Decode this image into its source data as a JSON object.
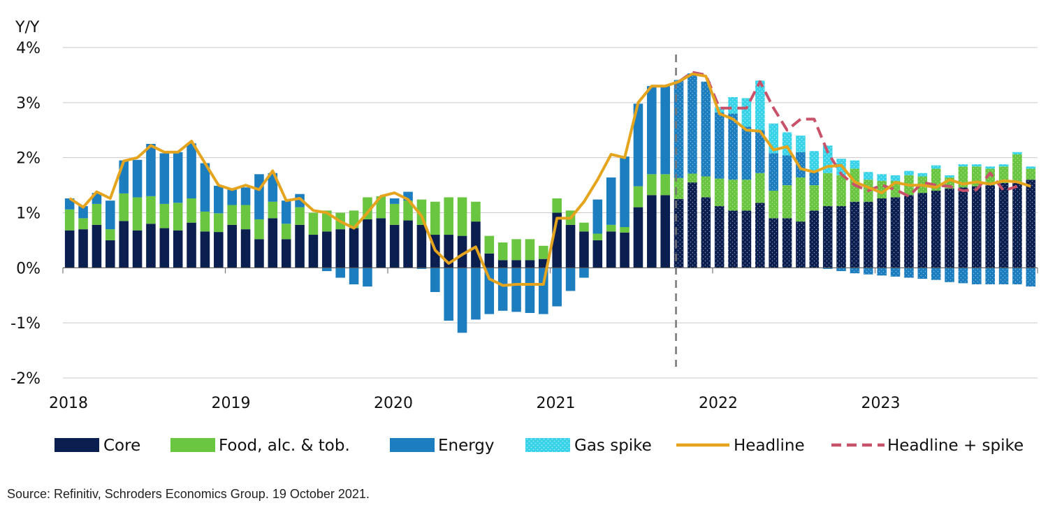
{
  "chart_data": {
    "type": "bar",
    "title": "",
    "ylabel": "Y/Y",
    "xlabel": "",
    "ylim": [
      -2,
      4
    ],
    "y_ticks": [
      "-2%",
      "-1%",
      "0%",
      "1%",
      "2%",
      "3%",
      "4%"
    ],
    "y_tick_values": [
      -2,
      -1,
      0,
      1,
      2,
      3,
      4
    ],
    "x_tick_labels": [
      "2018",
      "2019",
      "2020",
      "2021",
      "2022",
      "2023"
    ],
    "grid": true,
    "months_count": 72,
    "forecast_start_index": 45,
    "forecast_divider_label": "Oct 2021",
    "legend": [
      "Core",
      "Food, alc. & tob.",
      "Energy",
      "Gas spike",
      "Headline",
      "Headline + spike"
    ],
    "legend_position": "bottom",
    "colors": {
      "core": "#0b1e50",
      "food": "#6ac540",
      "energy": "#1c7dbf",
      "gas": "#38d3e8",
      "headline": "#e5a41e",
      "spike": "#c8526a",
      "grid": "#c9c9c9",
      "divider": "#777777"
    },
    "series": [
      {
        "name": "Core",
        "stack": "positive",
        "values": [
          0.68,
          0.7,
          0.78,
          0.5,
          0.85,
          0.68,
          0.8,
          0.72,
          0.68,
          0.82,
          0.66,
          0.65,
          0.78,
          0.7,
          0.52,
          0.9,
          0.52,
          0.78,
          0.6,
          0.66,
          0.7,
          0.72,
          0.88,
          0.9,
          0.78,
          0.86,
          0.78,
          0.6,
          0.6,
          0.58,
          0.84,
          0.26,
          0.14,
          0.14,
          0.14,
          0.16,
          1.0,
          0.78,
          0.66,
          0.5,
          0.66,
          0.64,
          1.1,
          1.32,
          1.32,
          1.25,
          1.55,
          1.28,
          1.12,
          1.04,
          1.04,
          1.18,
          0.9,
          0.9,
          0.84,
          1.04,
          1.12,
          1.12,
          1.2,
          1.2,
          1.26,
          1.28,
          1.32,
          1.36,
          1.4,
          1.44,
          1.46,
          1.48,
          1.5,
          1.54,
          1.56,
          1.6
        ]
      },
      {
        "name": "Food, alc. & tob.",
        "stack": "positive",
        "values": [
          0.38,
          0.2,
          0.38,
          0.2,
          0.5,
          0.6,
          0.5,
          0.44,
          0.5,
          0.44,
          0.36,
          0.34,
          0.36,
          0.44,
          0.36,
          0.3,
          0.28,
          0.32,
          0.4,
          0.38,
          0.3,
          0.32,
          0.4,
          0.4,
          0.38,
          0.36,
          0.46,
          0.6,
          0.68,
          0.7,
          0.36,
          0.32,
          0.32,
          0.38,
          0.38,
          0.24,
          0.26,
          0.26,
          0.16,
          0.12,
          0.12,
          0.1,
          0.38,
          0.38,
          0.38,
          0.38,
          0.16,
          0.38,
          0.5,
          0.56,
          0.56,
          0.54,
          0.5,
          0.6,
          0.8,
          0.46,
          0.6,
          0.56,
          0.6,
          0.4,
          0.32,
          0.3,
          0.36,
          0.3,
          0.4,
          0.2,
          0.38,
          0.36,
          0.3,
          0.3,
          0.5,
          0.2
        ]
      },
      {
        "name": "Energy",
        "stack": "mixed",
        "values": [
          0.2,
          0.22,
          0.2,
          0.52,
          0.6,
          0.68,
          0.95,
          0.92,
          0.92,
          1.0,
          0.88,
          0.5,
          0.28,
          0.32,
          0.82,
          0.52,
          0.42,
          0.24,
          0.0,
          -0.06,
          -0.18,
          -0.3,
          -0.34,
          0.0,
          0.1,
          0.16,
          -0.02,
          -0.44,
          -0.96,
          -1.18,
          -0.94,
          -0.84,
          -0.78,
          -0.8,
          -0.82,
          -0.84,
          -0.7,
          -0.42,
          -0.18,
          0.62,
          0.86,
          1.28,
          1.5,
          1.6,
          1.6,
          1.78,
          1.82,
          1.72,
          1.2,
          1.2,
          0.96,
          0.78,
          0.68,
          0.54,
          0.46,
          0.24,
          -0.02,
          -0.06,
          -0.1,
          -0.12,
          -0.14,
          -0.16,
          -0.18,
          -0.2,
          -0.22,
          -0.26,
          -0.28,
          -0.3,
          -0.3,
          -0.3,
          -0.3,
          -0.34
        ]
      },
      {
        "name": "Gas spike",
        "stack": "increment",
        "values": [
          0,
          0,
          0,
          0,
          0,
          0,
          0,
          0,
          0,
          0,
          0,
          0,
          0,
          0,
          0,
          0,
          0,
          0,
          0,
          0,
          0,
          0,
          0,
          0,
          0,
          0,
          0,
          0,
          0,
          0,
          0,
          0,
          0,
          0,
          0,
          0,
          0,
          0,
          0,
          0,
          0,
          0,
          0,
          0,
          0,
          0,
          0,
          0,
          0.1,
          0.3,
          0.52,
          0.9,
          0.54,
          0.42,
          0.3,
          0.38,
          0.5,
          0.3,
          0.15,
          0.14,
          0.12,
          0.1,
          0.08,
          0.06,
          0.06,
          0.04,
          0.04,
          0.04,
          0.04,
          0.04,
          0.04,
          0.04
        ]
      },
      {
        "name": "Headline",
        "type": "line",
        "values": [
          1.26,
          1.1,
          1.38,
          1.26,
          1.94,
          2.0,
          2.22,
          2.1,
          2.1,
          2.3,
          1.9,
          1.5,
          1.42,
          1.5,
          1.42,
          1.76,
          1.22,
          1.26,
          1.04,
          1.0,
          0.84,
          0.72,
          1.0,
          1.3,
          1.36,
          1.24,
          0.94,
          0.32,
          0.08,
          0.24,
          0.38,
          -0.2,
          -0.32,
          -0.3,
          -0.3,
          -0.3,
          0.9,
          0.9,
          1.2,
          1.6,
          2.06,
          2.0,
          3.0,
          3.3,
          3.3,
          3.38,
          3.52,
          3.48,
          2.8,
          2.7,
          2.5,
          2.48,
          2.14,
          2.2,
          1.8,
          1.74,
          1.84,
          1.86,
          1.56,
          1.46,
          1.36,
          1.55,
          1.5,
          1.5,
          1.46,
          1.6,
          1.52,
          1.56,
          1.52,
          1.58,
          1.56,
          1.48
        ]
      },
      {
        "name": "Headline + spike",
        "type": "line-dashed",
        "start_index": 45,
        "values": [
          3.38,
          3.55,
          3.5,
          2.9,
          2.9,
          2.9,
          3.38,
          2.9,
          2.5,
          2.7,
          2.7,
          2.1,
          1.7,
          1.5,
          1.4,
          1.5,
          1.42,
          1.3,
          1.55,
          1.5,
          1.48,
          1.4,
          1.42,
          1.72,
          1.4,
          1.48
        ]
      }
    ]
  },
  "source_text": "Source: Refinitiv, Schroders Economics Group. 19 October 2021."
}
